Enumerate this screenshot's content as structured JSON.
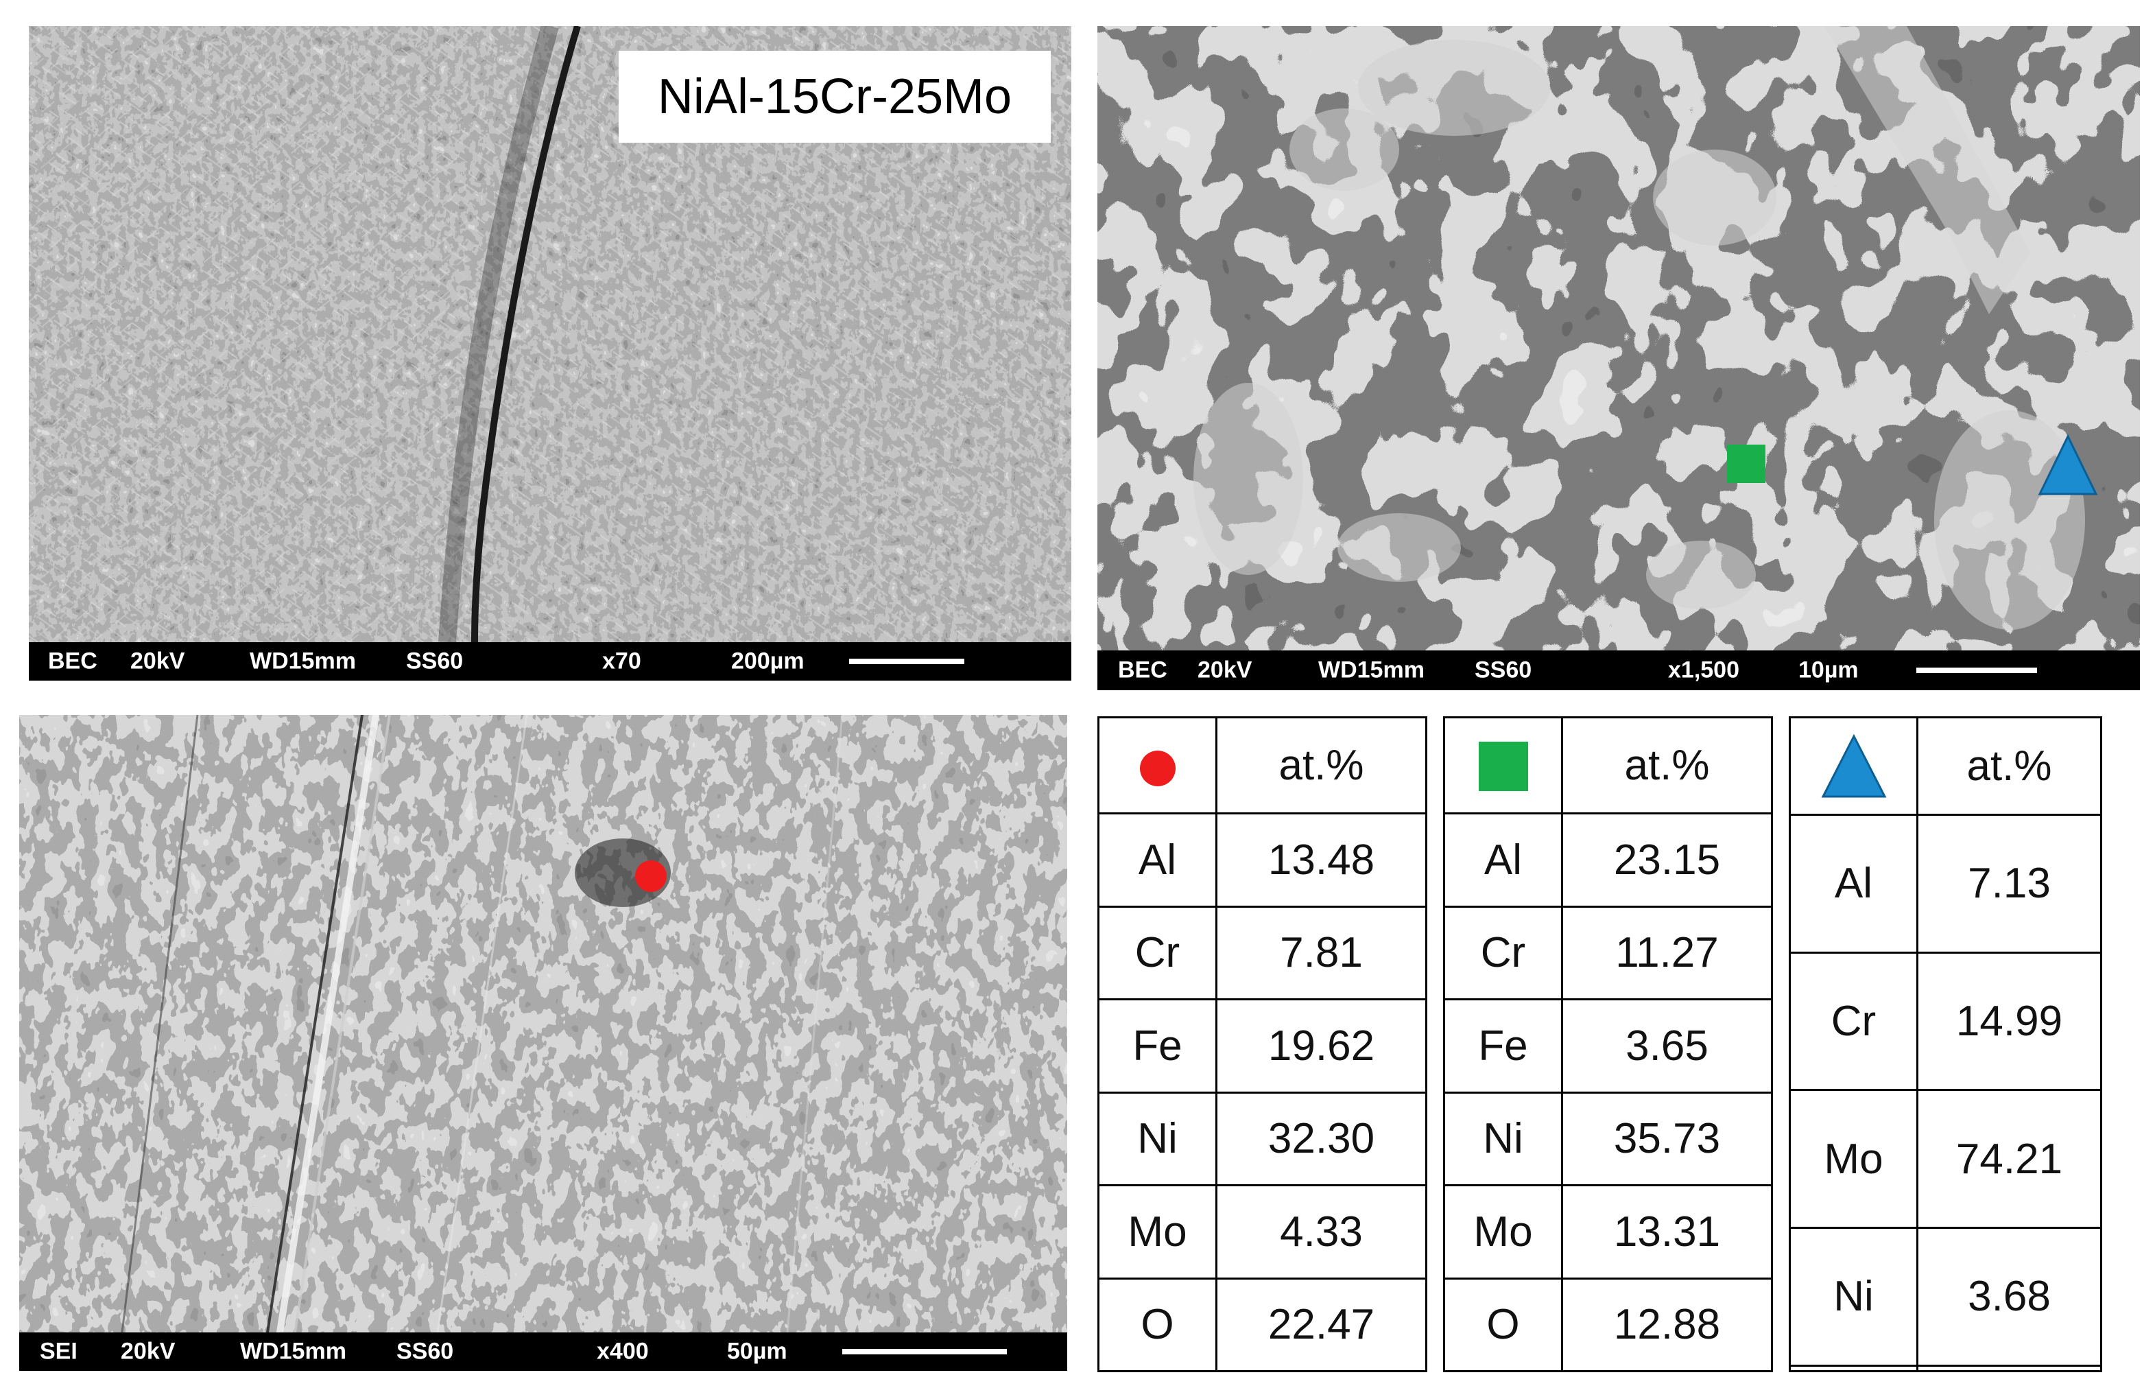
{
  "panels": {
    "top_left": {
      "label": "NiAl-15Cr-25Mo",
      "info": {
        "mode": "BEC",
        "kv": "20kV",
        "wd": "WD15mm",
        "ss": "SS60",
        "mag": "x70",
        "scale": "200µm"
      }
    },
    "top_right": {
      "info": {
        "mode": "BEC",
        "kv": "20kV",
        "wd": "WD15mm",
        "ss": "SS60",
        "mag": "x1,500",
        "scale": "10µm"
      }
    },
    "bottom_left": {
      "info": {
        "mode": "SEI",
        "kv": "20kV",
        "wd": "WD15mm",
        "ss": "SS60",
        "mag": "x400",
        "scale": "50µm"
      }
    }
  },
  "markers": {
    "circle_color": "#ee1c1c",
    "square_color": "#19b04b",
    "triangle_color": "#1a8ccf"
  },
  "tables": [
    {
      "marker": "circle-icon",
      "header": "at.%",
      "rows": [
        {
          "el": "Al",
          "val": "13.48"
        },
        {
          "el": "Cr",
          "val": "7.81"
        },
        {
          "el": "Fe",
          "val": "19.62"
        },
        {
          "el": "Ni",
          "val": "32.30"
        },
        {
          "el": "Mo",
          "val": "4.33"
        },
        {
          "el": "O",
          "val": "22.47"
        }
      ]
    },
    {
      "marker": "square-icon",
      "header": "at.%",
      "rows": [
        {
          "el": "Al",
          "val": "23.15"
        },
        {
          "el": "Cr",
          "val": "11.27"
        },
        {
          "el": "Fe",
          "val": "3.65"
        },
        {
          "el": "Ni",
          "val": "35.73"
        },
        {
          "el": "Mo",
          "val": "13.31"
        },
        {
          "el": "O",
          "val": "12.88"
        }
      ]
    },
    {
      "marker": "triangle-icon",
      "header": "at.%",
      "rows": [
        {
          "el": "Al",
          "val": "7.13"
        },
        {
          "el": "Cr",
          "val": "14.99"
        },
        {
          "el": "Mo",
          "val": "74.21"
        },
        {
          "el": "Ni",
          "val": "3.68"
        }
      ]
    }
  ]
}
